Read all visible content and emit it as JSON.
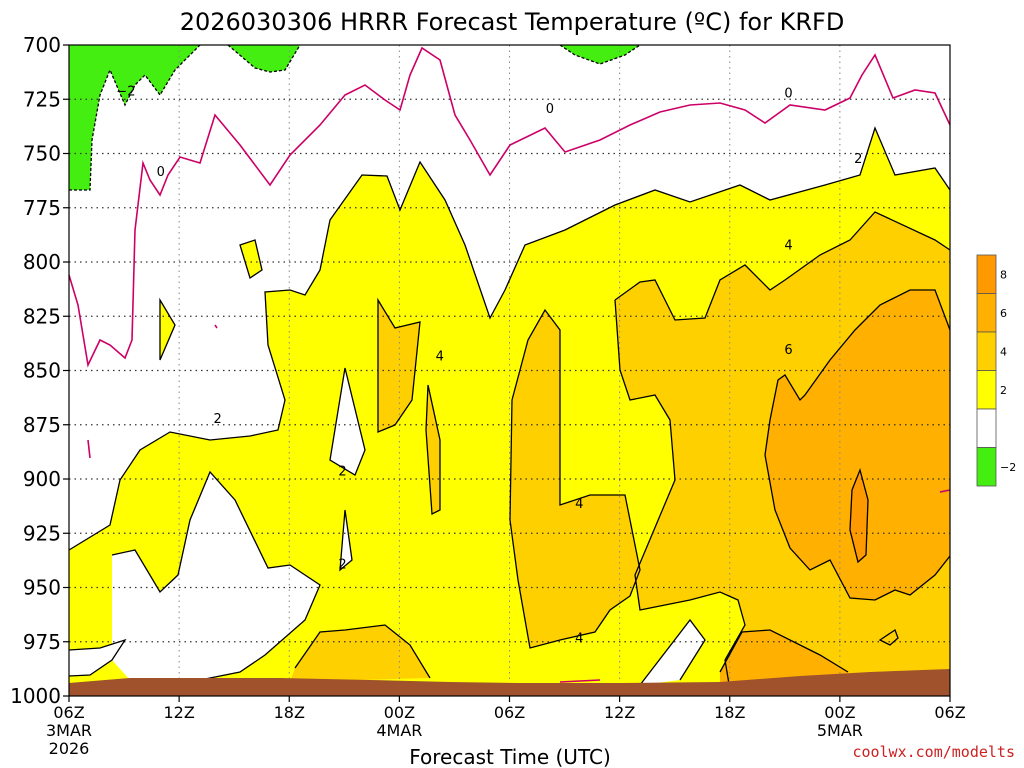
{
  "chart_data": {
    "type": "contour",
    "title": "2026030306 HRRR Forecast Temperature (ºC) for KRFD",
    "xlabel": "Forecast Time (UTC)",
    "ylabel": "",
    "credit": "coolwx.com/modelts",
    "x_hours_range": [
      0,
      48
    ],
    "y_pressure_range": [
      700,
      1000
    ],
    "y_ticks": [
      {
        "label": "700",
        "p": 700
      },
      {
        "label": "725",
        "p": 725
      },
      {
        "label": "750",
        "p": 750
      },
      {
        "label": "775",
        "p": 775
      },
      {
        "label": "800",
        "p": 800
      },
      {
        "label": "825",
        "p": 825
      },
      {
        "label": "850",
        "p": 850
      },
      {
        "label": "875",
        "p": 875
      },
      {
        "label": "900",
        "p": 900
      },
      {
        "label": "925",
        "p": 925
      },
      {
        "label": "950",
        "p": 950
      },
      {
        "label": "975",
        "p": 975
      },
      {
        "label": "1000",
        "p": 1000
      }
    ],
    "x_ticks": [
      {
        "label": "06Z",
        "sub1": "3MAR",
        "sub2": "2026",
        "h": 0
      },
      {
        "label": "12Z",
        "sub1": "",
        "sub2": "",
        "h": 6
      },
      {
        "label": "18Z",
        "sub1": "",
        "sub2": "",
        "h": 12
      },
      {
        "label": "00Z",
        "sub1": "4MAR",
        "sub2": "",
        "h": 18
      },
      {
        "label": "06Z",
        "sub1": "",
        "sub2": "",
        "h": 24
      },
      {
        "label": "12Z",
        "sub1": "",
        "sub2": "",
        "h": 30
      },
      {
        "label": "18Z",
        "sub1": "",
        "sub2": "",
        "h": 36
      },
      {
        "label": "00Z",
        "sub1": "5MAR",
        "sub2": "",
        "h": 42
      },
      {
        "label": "06Z",
        "sub1": "",
        "sub2": "",
        "h": 48
      }
    ],
    "legend": {
      "placement": "right",
      "bins": [
        {
          "label": "8",
          "color": "#ff9900"
        },
        {
          "label": "6",
          "color": "#ffb000"
        },
        {
          "label": "4",
          "color": "#ffd000"
        },
        {
          "label": "2",
          "color": "#ffff00"
        },
        {
          "label": "",
          "color": "#ffffff"
        },
        {
          "label": "−2",
          "color": "#44ee11"
        }
      ]
    },
    "contour_labels": [
      {
        "text": "−2",
        "h": 3.1,
        "p": 721
      },
      {
        "text": "0",
        "h": 5.0,
        "p": 758
      },
      {
        "text": "0",
        "h": 26.2,
        "p": 729
      },
      {
        "text": "0",
        "h": 39.2,
        "p": 722
      },
      {
        "text": "2",
        "h": 8.1,
        "p": 872
      },
      {
        "text": "2",
        "h": 14.9,
        "p": 896
      },
      {
        "text": "2",
        "h": 14.9,
        "p": 939
      },
      {
        "text": "2",
        "h": 43.0,
        "p": 752
      },
      {
        "text": "4",
        "h": 20.2,
        "p": 843
      },
      {
        "text": "4",
        "h": 27.8,
        "p": 911
      },
      {
        "text": "4",
        "h": 27.8,
        "p": 973
      },
      {
        "text": "4",
        "h": 39.2,
        "p": 792
      },
      {
        "text": "6",
        "h": 39.2,
        "p": 840
      }
    ],
    "colors": {
      "green": "#44ee11",
      "yellow": "#ffff00",
      "gold": "#ffd000",
      "orange": "#ffb000",
      "dark_orange": "#ff9900",
      "ground": "#a0522d",
      "zero_line": "#cc0066"
    },
    "grid": true
  }
}
